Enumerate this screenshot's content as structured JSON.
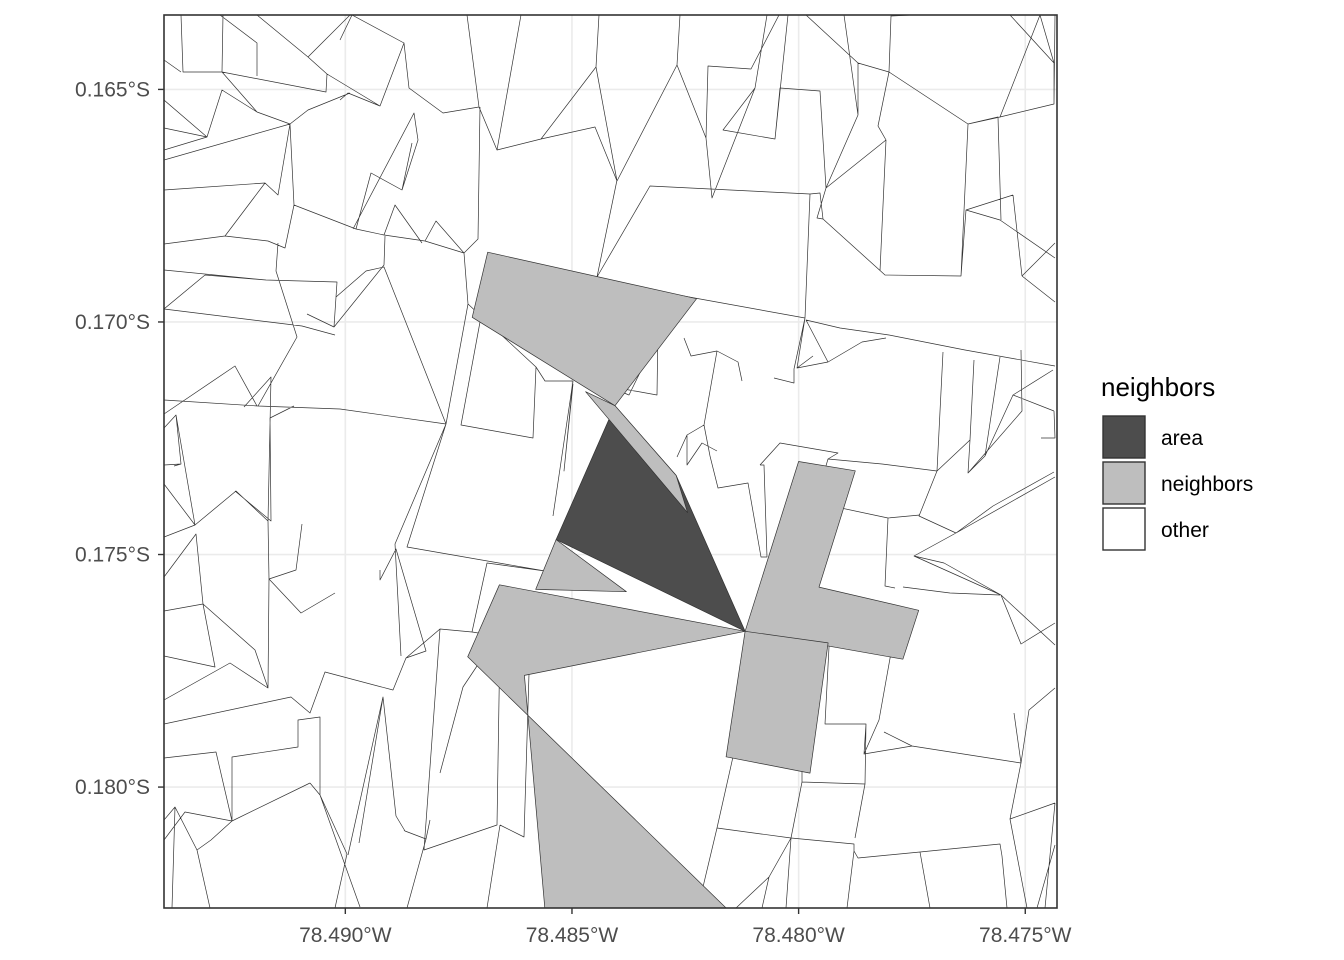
{
  "map": {
    "x_axis": {
      "ticks": [
        "78.490°W",
        "78.485°W",
        "78.480°W",
        "78.475°W"
      ],
      "values": [
        -78.49,
        -78.485,
        -78.48,
        -78.475
      ],
      "range": [
        -78.494,
        -78.4743
      ]
    },
    "y_axis": {
      "ticks": [
        "0.165°S",
        "0.170°S",
        "0.175°S",
        "0.180°S"
      ],
      "values": [
        -0.165,
        -0.17,
        -0.175,
        -0.18
      ],
      "range": [
        -0.1826,
        -0.1634
      ]
    },
    "grid": true,
    "colors": {
      "area": "#4d4d4d",
      "neighbors": "#bebebe",
      "other": "#ffffff",
      "border": "#333333",
      "panel_border": "#333333",
      "grid": "#ebebeb"
    }
  },
  "legend": {
    "title": "neighbors",
    "placement": "right",
    "items": [
      {
        "key": "area",
        "label": "area",
        "color": "#4d4d4d"
      },
      {
        "key": "neighbors",
        "label": "neighbors",
        "color": "#bebebe"
      },
      {
        "key": "other",
        "label": "other",
        "color": "#ffffff"
      }
    ]
  },
  "chart_data": {
    "type": "map",
    "title": "",
    "xlabel": "",
    "ylabel": "",
    "fill_variable": "neighbors",
    "categories": [
      "area",
      "neighbors",
      "other"
    ],
    "polygons": [
      {
        "class": "area",
        "coords": [
          [
            -78.48405,
            -0.1718
          ],
          [
            -78.4827,
            -0.1733
          ],
          [
            -78.48118,
            -0.17665
          ],
          [
            -78.48535,
            -0.17468
          ]
        ]
      },
      {
        "class": "neighbors",
        "coords": [
          [
            -78.4847,
            -0.1715
          ],
          [
            -78.48405,
            -0.1718
          ],
          [
            -78.4827,
            -0.1733
          ],
          [
            -78.48245,
            -0.1741
          ]
        ]
      },
      {
        "class": "neighbors",
        "coords": [
          [
            -78.48686,
            -0.1685
          ],
          [
            -78.48225,
            -0.1695
          ],
          [
            -78.48405,
            -0.1718
          ],
          [
            -78.4872,
            -0.1699
          ]
        ]
      },
      {
        "class": "neighbors",
        "coords": [
          [
            -78.48535,
            -0.17468
          ],
          [
            -78.4838,
            -0.1758
          ],
          [
            -78.4858,
            -0.17575
          ]
        ]
      },
      {
        "class": "neighbors",
        "coords": [
          [
            -78.48118,
            -0.17665
          ],
          [
            -78.4866,
            -0.17565
          ],
          [
            -78.4873,
            -0.1772
          ],
          [
            -78.4816,
            -0.1826
          ],
          [
            -78.4856,
            -0.1826
          ],
          [
            -78.48605,
            -0.1776
          ]
        ]
      },
      {
        "class": "neighbors",
        "coords": [
          [
            -78.48,
            -0.173
          ],
          [
            -78.47875,
            -0.1732
          ],
          [
            -78.47955,
            -0.1757
          ],
          [
            -78.47735,
            -0.1762
          ],
          [
            -78.4777,
            -0.17725
          ],
          [
            -78.48118,
            -0.17665
          ]
        ]
      },
      {
        "class": "neighbors",
        "coords": [
          [
            -78.48118,
            -0.17665
          ],
          [
            -78.47935,
            -0.1769
          ],
          [
            -78.47975,
            -0.1797
          ],
          [
            -78.4816,
            -0.17935
          ]
        ]
      }
    ]
  }
}
